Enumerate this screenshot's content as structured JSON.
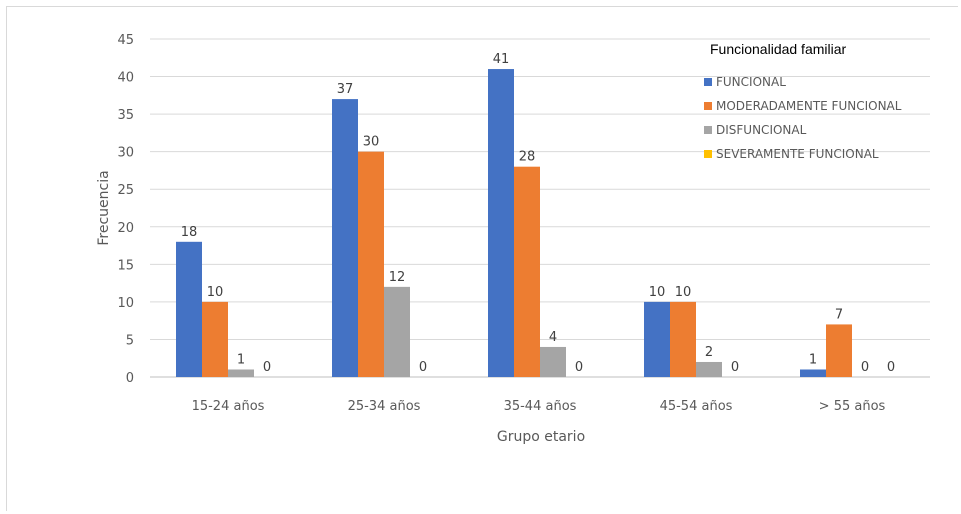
{
  "chart_data": {
    "type": "bar",
    "categories": [
      "15-24 años",
      "25-34 años",
      "35-44 años",
      "45-54 años",
      "> 55 años"
    ],
    "series": [
      {
        "name": "FUNCIONAL",
        "values": [
          18,
          37,
          41,
          10,
          1
        ],
        "color": "#4472c4"
      },
      {
        "name": "MODERADAMENTE FUNCIONAL",
        "values": [
          10,
          30,
          28,
          10,
          7
        ],
        "color": "#ed7d31"
      },
      {
        "name": "DISFUNCIONAL",
        "values": [
          1,
          12,
          4,
          2,
          0
        ],
        "color": "#a5a5a5"
      },
      {
        "name": "SEVERAMENTE FUNCIONAL",
        "values": [
          0,
          0,
          0,
          0,
          0
        ],
        "color": "#ffc000"
      }
    ],
    "xlabel": "Grupo etario",
    "ylabel": "Frecuencia",
    "ylim": [
      0,
      45
    ],
    "yticks": [
      0,
      5,
      10,
      15,
      20,
      25,
      30,
      35,
      40,
      45
    ],
    "legend_title": "Funcionalidad familiar",
    "legend_position": "right",
    "grid": true,
    "data_labels": true
  }
}
